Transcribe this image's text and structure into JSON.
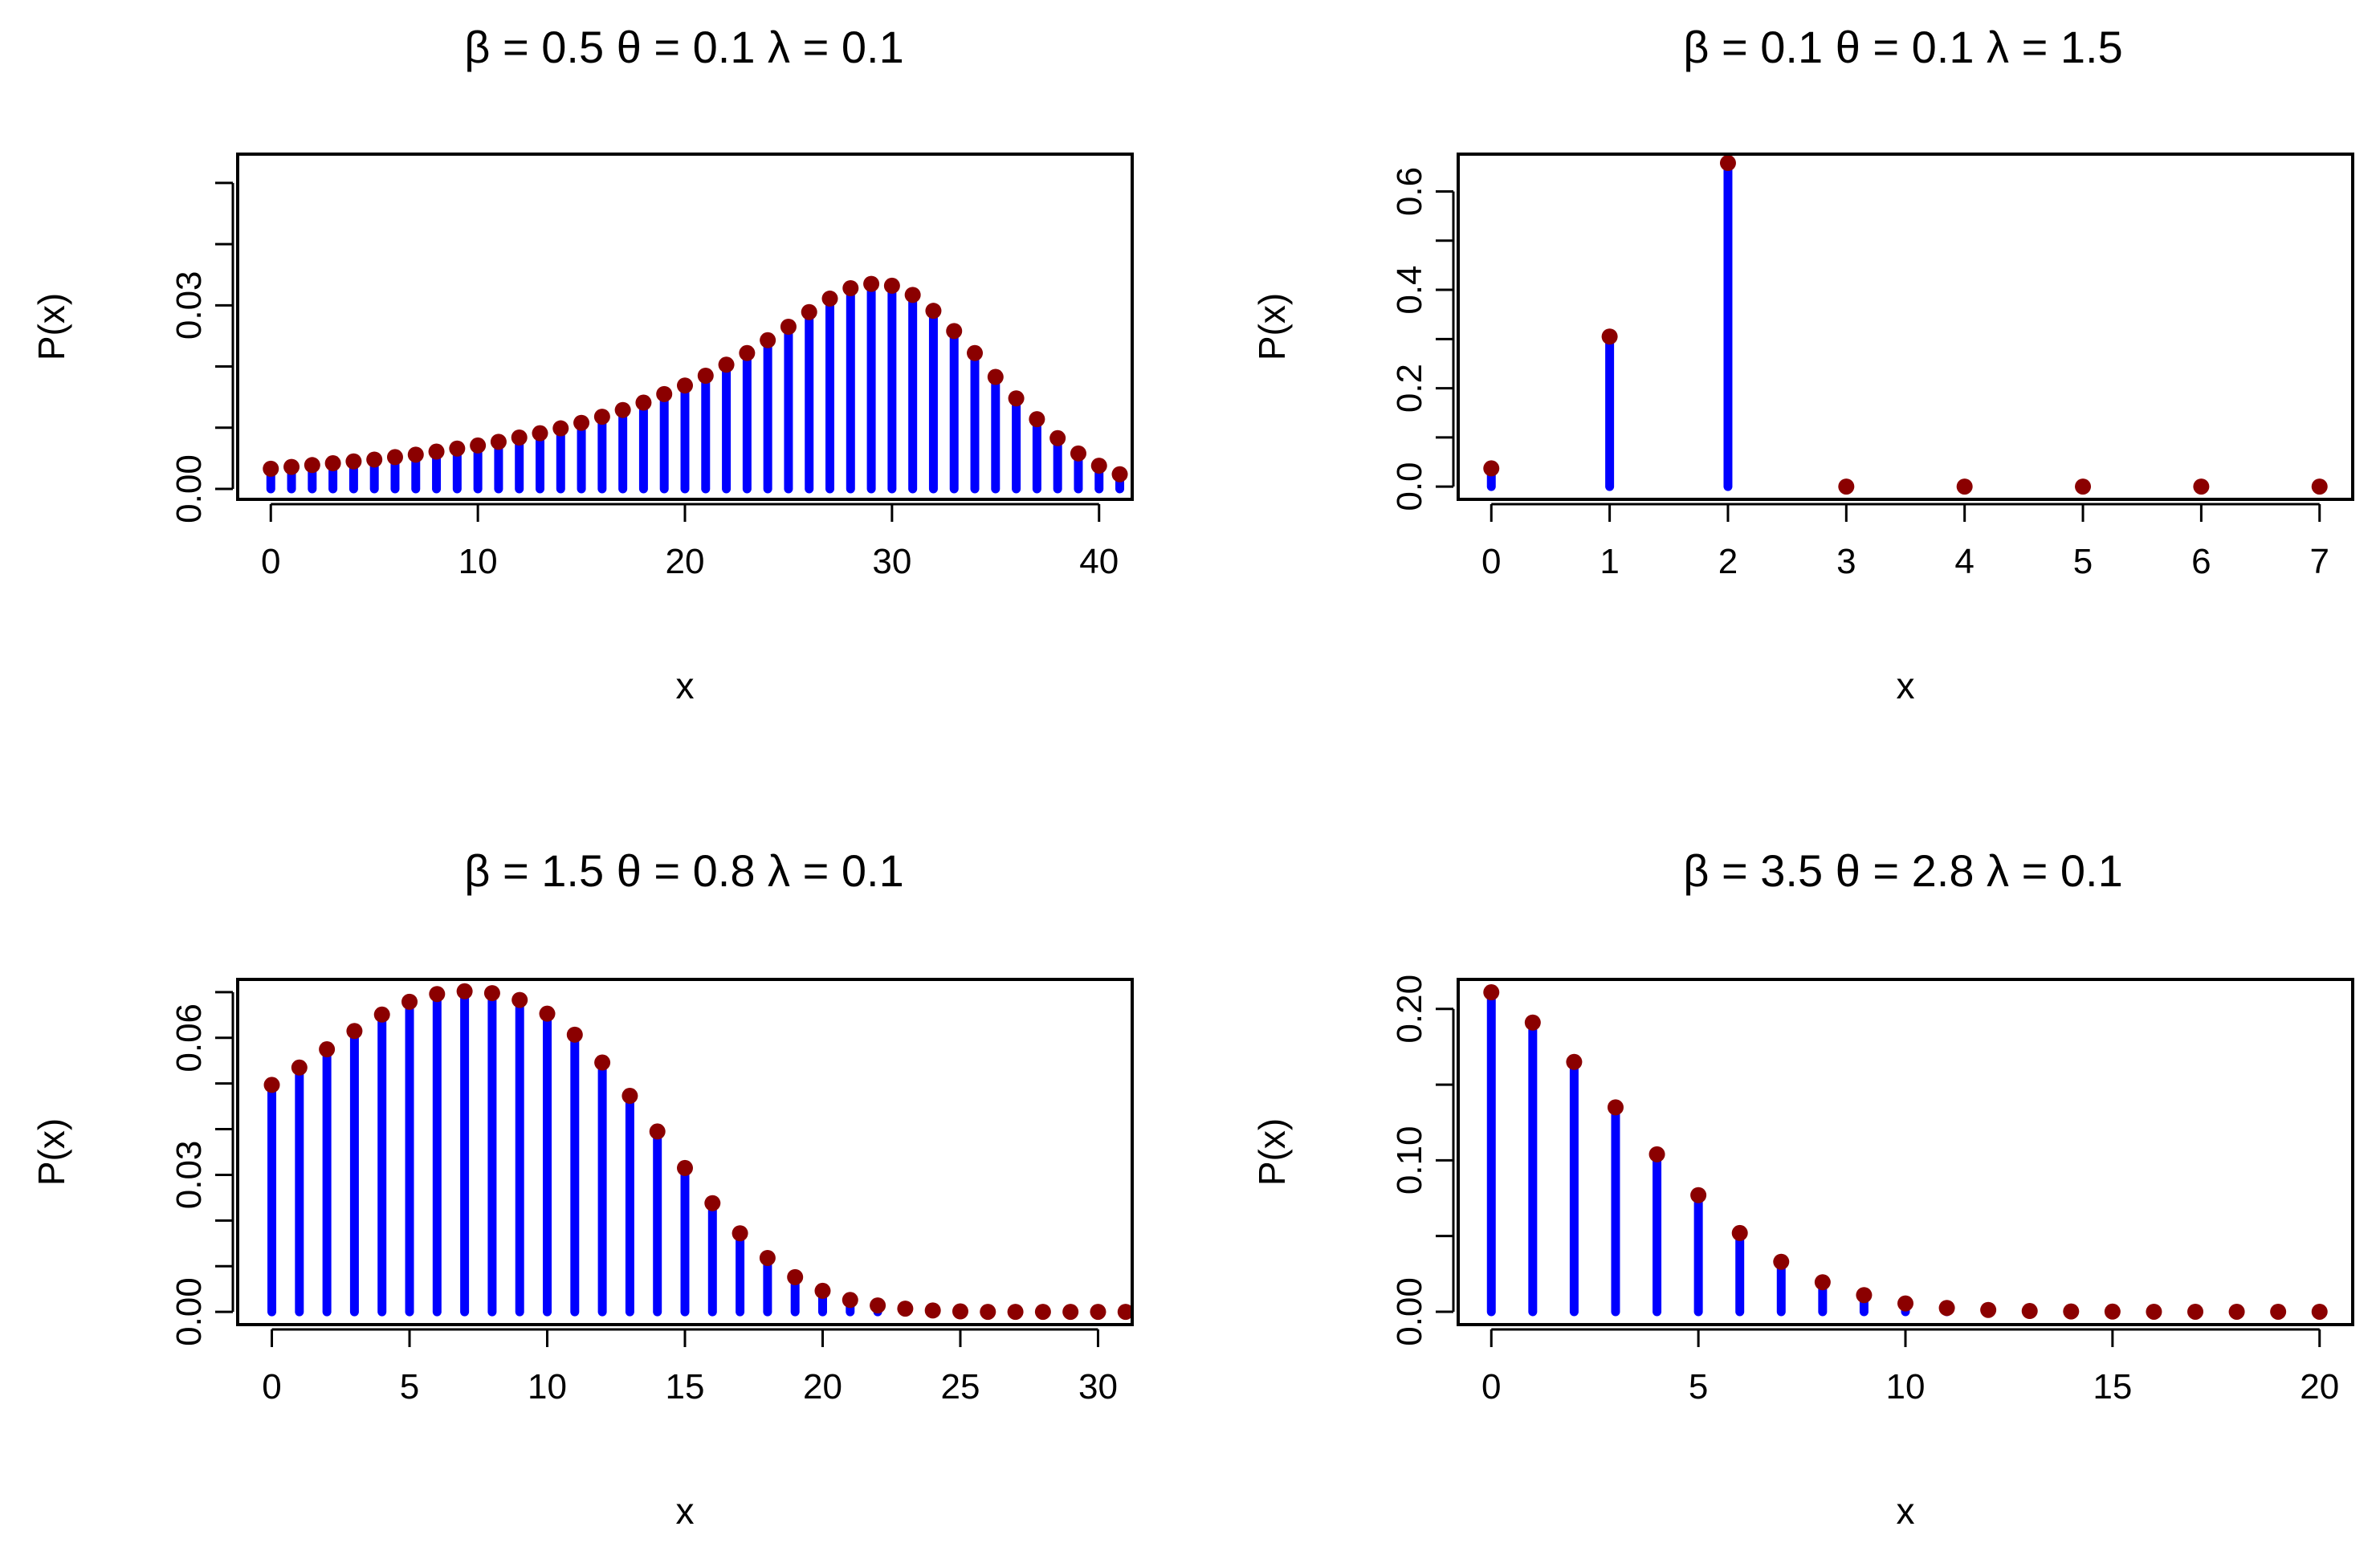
{
  "chart_data": [
    {
      "type": "stem",
      "title": "β = 0.5 θ = 0.1 λ = 0.1",
      "xlabel": "x",
      "ylabel": "P(x)",
      "xlim": [
        -1.6,
        41.6
      ],
      "ylim": [
        -0.0017,
        0.0547
      ],
      "xticks": [
        0,
        10,
        20,
        30,
        40
      ],
      "xtick_labels": [
        "0",
        "10",
        "20",
        "30",
        "40"
      ],
      "yticks": [
        0,
        0.01,
        0.02,
        0.03,
        0.04,
        0.05
      ],
      "ytick_labels": [
        "0.00",
        "",
        "",
        "0.03",
        "",
        ""
      ],
      "colors": {
        "stem": "#0000FF",
        "point": "#8B0000"
      },
      "x": [
        0,
        1,
        2,
        3,
        4,
        5,
        6,
        7,
        8,
        9,
        10,
        11,
        12,
        13,
        14,
        15,
        16,
        17,
        18,
        19,
        20,
        21,
        22,
        23,
        24,
        25,
        26,
        27,
        28,
        29,
        30,
        31,
        32,
        33,
        34,
        35,
        36,
        37,
        38,
        39,
        40,
        41
      ],
      "values": [
        0.0033,
        0.0036,
        0.0039,
        0.0042,
        0.0045,
        0.0048,
        0.0052,
        0.0056,
        0.0061,
        0.0066,
        0.0071,
        0.0077,
        0.0084,
        0.0091,
        0.0099,
        0.0108,
        0.0118,
        0.0129,
        0.0141,
        0.0155,
        0.0169,
        0.0185,
        0.0203,
        0.0222,
        0.0243,
        0.0265,
        0.0289,
        0.0311,
        0.0328,
        0.0335,
        0.0332,
        0.0317,
        0.0291,
        0.0258,
        0.0222,
        0.0183,
        0.0148,
        0.0114,
        0.0083,
        0.0058,
        0.0038,
        0.0024
      ]
    },
    {
      "type": "stem",
      "title": "β = 0.1 θ = 0.1 λ = 1.5",
      "xlabel": "x",
      "ylabel": "P(x)",
      "xlim": [
        -0.28,
        7.28
      ],
      "ylim": [
        -0.026,
        0.676
      ],
      "xticks": [
        0,
        1,
        2,
        3,
        4,
        5,
        6,
        7
      ],
      "xtick_labels": [
        "0",
        "1",
        "2",
        "3",
        "4",
        "5",
        "6",
        "7"
      ],
      "yticks": [
        0,
        0.1,
        0.2,
        0.3,
        0.4,
        0.5,
        0.6
      ],
      "ytick_labels": [
        "0.0",
        "",
        "0.2",
        "",
        "0.4",
        "",
        "0.6"
      ],
      "colors": {
        "stem": "#0000FF",
        "point": "#8B0000"
      },
      "x": [
        0,
        1,
        2,
        3,
        4,
        5,
        6,
        7
      ],
      "values": [
        0.037,
        0.305,
        0.658,
        0.0,
        0.0,
        0.0,
        0.0,
        0.0
      ]
    },
    {
      "type": "stem",
      "title": "β = 1.5 θ = 0.8 λ = 0.1",
      "xlabel": "x",
      "ylabel": "P(x)",
      "xlim": [
        -1.24,
        31.24
      ],
      "ylim": [
        -0.0028,
        0.0728
      ],
      "xticks": [
        0,
        5,
        10,
        15,
        20,
        25,
        30
      ],
      "xtick_labels": [
        "0",
        "5",
        "10",
        "15",
        "20",
        "25",
        "30"
      ],
      "yticks": [
        0,
        0.01,
        0.02,
        0.03,
        0.04,
        0.05,
        0.06,
        0.07
      ],
      "ytick_labels": [
        "0.00",
        "",
        "",
        "0.03",
        "",
        "",
        "0.06",
        ""
      ],
      "colors": {
        "stem": "#0000FF",
        "point": "#8B0000"
      },
      "x": [
        0,
        1,
        2,
        3,
        4,
        5,
        6,
        7,
        8,
        9,
        10,
        11,
        12,
        13,
        14,
        15,
        16,
        17,
        18,
        19,
        20,
        21,
        22,
        23,
        24,
        25,
        26,
        27,
        28,
        29,
        30,
        31
      ],
      "values": [
        0.0497,
        0.0535,
        0.0575,
        0.0615,
        0.0651,
        0.0679,
        0.0696,
        0.0702,
        0.0698,
        0.0683,
        0.0653,
        0.0607,
        0.0546,
        0.0473,
        0.0395,
        0.0315,
        0.0238,
        0.0172,
        0.0118,
        0.0076,
        0.0046,
        0.0026,
        0.0014,
        0.0007,
        0.0003,
        0.0001,
        0.0,
        0.0,
        0.0,
        0.0,
        0.0,
        0.0
      ]
    },
    {
      "type": "stem",
      "title": "β = 3.5 θ = 2.8 λ = 0.1",
      "xlabel": "x",
      "ylabel": "P(x)",
      "xlim": [
        -0.8,
        20.8
      ],
      "ylim": [
        -0.0085,
        0.2195
      ],
      "xticks": [
        0,
        5,
        10,
        15,
        20
      ],
      "xtick_labels": [
        "0",
        "5",
        "10",
        "15",
        "20"
      ],
      "yticks": [
        0,
        0.05,
        0.1,
        0.15,
        0.2
      ],
      "ytick_labels": [
        "0.00",
        "",
        "0.10",
        "",
        "0.20"
      ],
      "colors": {
        "stem": "#0000FF",
        "point": "#8B0000"
      },
      "x": [
        0,
        1,
        2,
        3,
        4,
        5,
        6,
        7,
        8,
        9,
        10,
        11,
        12,
        13,
        14,
        15,
        16,
        17,
        18,
        19,
        20
      ],
      "values": [
        0.211,
        0.191,
        0.165,
        0.135,
        0.104,
        0.077,
        0.052,
        0.033,
        0.0195,
        0.011,
        0.0055,
        0.0025,
        0.0012,
        0.0005,
        0.0002,
        0.0001,
        0.0,
        0.0,
        0.0,
        0.0,
        0.0
      ]
    }
  ]
}
